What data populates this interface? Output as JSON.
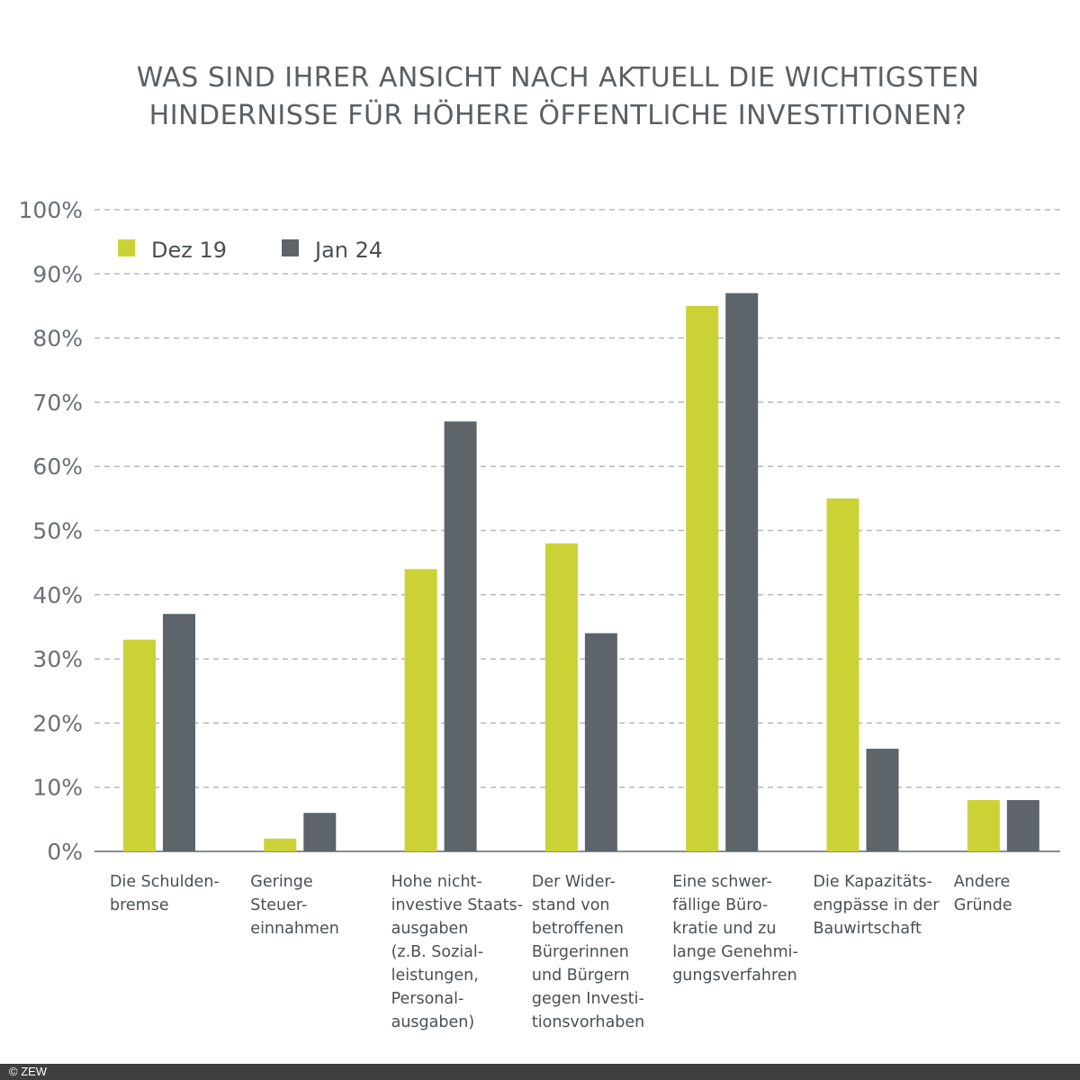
{
  "chart_data": {
    "type": "bar",
    "title": [
      "WAS SIND IHRER ANSICHT NACH AKTUELL DIE WICHTIGSTEN",
      "HINDERNISSE FÜR HÖHERE ÖFFENTLICHE INVESTITIONEN?"
    ],
    "categories": [
      "Die Schulden-\nbremse",
      "Geringe\nSteuer-\neinnahmen",
      "Hohe nicht-\ninvestive Staats-\nausgaben\n(z.B. Sozial-\nleistungen,\nPersonal-\nausgaben)",
      "Der Wider-\nstand von\nbetroffenen\nBürgerinnen\nund Bürgern\ngegen Investi-\ntionsvorhaben",
      "Eine schwer-\nfällige Büro-\nkratie und zu\nlange Genehmi-\ngungsverfahren",
      "Die Kapazitäts-\nengpässe in der\nBauwirtschaft",
      "Andere\nGründe"
    ],
    "series": [
      {
        "name": "Dez 19",
        "color": "#cbd236",
        "values": [
          33,
          2,
          44,
          48,
          85,
          55,
          8
        ]
      },
      {
        "name": "Jan 24",
        "color": "#5d656b",
        "values": [
          37,
          6,
          67,
          34,
          87,
          16,
          8
        ]
      }
    ],
    "ylim": [
      0,
      100
    ],
    "yticks": [
      "0%",
      "10%",
      "20%",
      "30%",
      "40%",
      "50%",
      "60%",
      "70%",
      "80%",
      "90%",
      "100%"
    ],
    "grid": true,
    "legend": "top-left"
  },
  "footer": "© ZEW"
}
